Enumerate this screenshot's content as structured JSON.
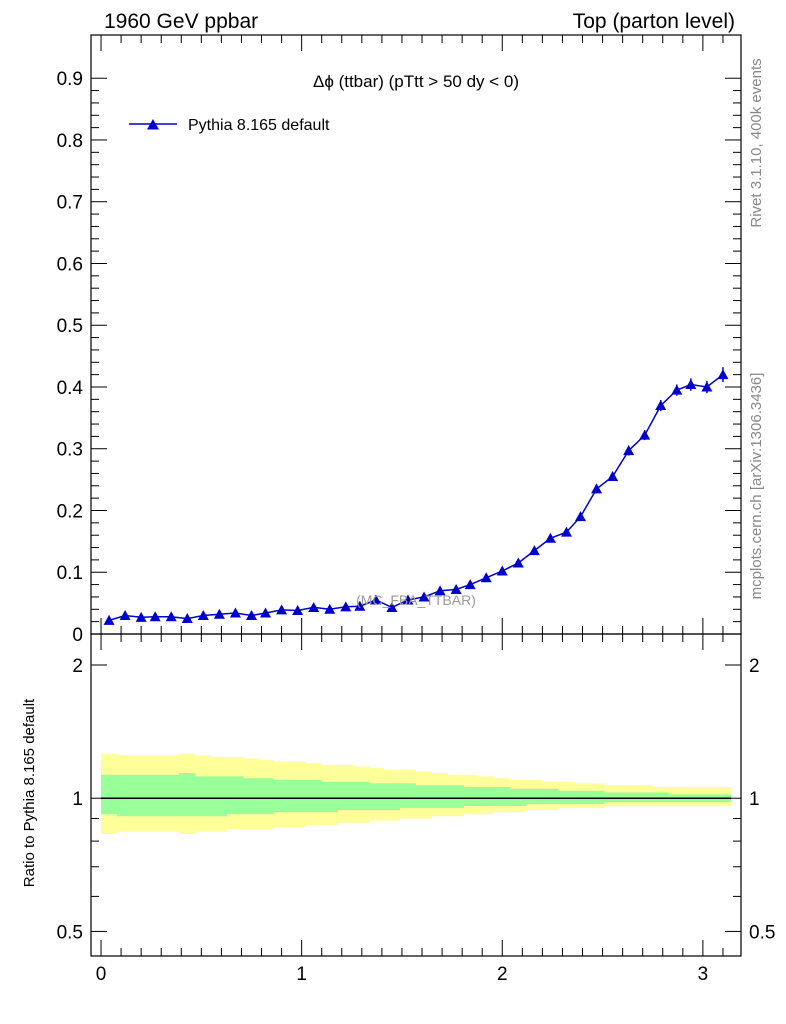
{
  "header": {
    "left": "1960 GeV ppbar",
    "right": "Top (parton level)"
  },
  "side_labels": {
    "rivet": "Rivet 3.1.10,  400k events",
    "mcplots": "mcplots.cern.ch [arXiv:1306.3436]"
  },
  "watermark": "(MC_FBA_TTBAR)",
  "chart_data": [
    {
      "type": "line",
      "title": "Δϕ (ttbar) (pTtt > 50 dy < 0)",
      "xlabel": "",
      "ylabel": "",
      "xlim": [
        -0.05,
        3.19
      ],
      "ylim": [
        0,
        0.97
      ],
      "legend": {
        "placement": "top-left"
      },
      "series": [
        {
          "name": "Pythia 8.165 default",
          "color": "#0000cc",
          "marker": "triangle-up",
          "x": [
            0.04,
            0.12,
            0.2,
            0.27,
            0.35,
            0.43,
            0.51,
            0.59,
            0.67,
            0.75,
            0.82,
            0.9,
            0.98,
            1.06,
            1.14,
            1.22,
            1.29,
            1.37,
            1.45,
            1.53,
            1.61,
            1.69,
            1.77,
            1.84,
            1.92,
            2.0,
            2.08,
            2.16,
            2.24,
            2.32,
            2.39,
            2.47,
            2.55,
            2.63,
            2.71,
            2.79,
            2.87,
            2.94,
            3.02,
            3.1
          ],
          "y": [
            0.022,
            0.03,
            0.027,
            0.028,
            0.028,
            0.025,
            0.03,
            0.032,
            0.034,
            0.03,
            0.034,
            0.039,
            0.038,
            0.043,
            0.04,
            0.044,
            0.045,
            0.055,
            0.043,
            0.055,
            0.06,
            0.07,
            0.072,
            0.08,
            0.091,
            0.102,
            0.115,
            0.135,
            0.155,
            0.165,
            0.19,
            0.235,
            0.255,
            0.297,
            0.322,
            0.37,
            0.395,
            0.404,
            0.4,
            0.42
          ],
          "yerr": [
            0.003,
            0.003,
            0.003,
            0.003,
            0.003,
            0.003,
            0.003,
            0.003,
            0.003,
            0.003,
            0.003,
            0.003,
            0.003,
            0.003,
            0.003,
            0.003,
            0.003,
            0.004,
            0.003,
            0.004,
            0.004,
            0.004,
            0.004,
            0.004,
            0.004,
            0.005,
            0.005,
            0.005,
            0.005,
            0.006,
            0.006,
            0.007,
            0.007,
            0.008,
            0.008,
            0.009,
            0.009,
            0.01,
            0.01,
            0.012
          ]
        }
      ]
    },
    {
      "type": "area",
      "xlabel": "",
      "ylabel": "Ratio to Pythia 8.165 default",
      "xlim": [
        -0.05,
        3.19
      ],
      "ylim": [
        0.44,
        2.35
      ],
      "yscale": "log",
      "xticks": [
        "0",
        "1",
        "2",
        "3"
      ],
      "yticks": [
        "0.5",
        "1",
        "2"
      ],
      "reference_line": 1,
      "x_edges": [
        0.0,
        0.08,
        0.16,
        0.24,
        0.31,
        0.39,
        0.47,
        0.55,
        0.63,
        0.71,
        0.79,
        0.86,
        0.94,
        1.02,
        1.1,
        1.18,
        1.26,
        1.34,
        1.41,
        1.49,
        1.57,
        1.65,
        1.73,
        1.81,
        1.88,
        1.96,
        2.04,
        2.12,
        2.2,
        2.28,
        2.36,
        2.43,
        2.51,
        2.59,
        2.67,
        2.75,
        2.83,
        2.91,
        2.98,
        3.06,
        3.14
      ],
      "series": [
        {
          "name": "",
          "color": "#ffff99",
          "lower": [
            0.83,
            0.84,
            0.84,
            0.84,
            0.84,
            0.83,
            0.84,
            0.84,
            0.85,
            0.85,
            0.85,
            0.86,
            0.86,
            0.87,
            0.87,
            0.88,
            0.88,
            0.89,
            0.89,
            0.9,
            0.9,
            0.91,
            0.91,
            0.92,
            0.92,
            0.93,
            0.93,
            0.94,
            0.94,
            0.95,
            0.95,
            0.95,
            0.96,
            0.96,
            0.96,
            0.96,
            0.96,
            0.96,
            0.96,
            0.96
          ],
          "upper": [
            1.26,
            1.25,
            1.25,
            1.25,
            1.25,
            1.26,
            1.25,
            1.24,
            1.24,
            1.23,
            1.22,
            1.21,
            1.21,
            1.2,
            1.19,
            1.19,
            1.18,
            1.17,
            1.16,
            1.16,
            1.15,
            1.14,
            1.13,
            1.13,
            1.12,
            1.11,
            1.1,
            1.1,
            1.09,
            1.09,
            1.08,
            1.08,
            1.07,
            1.07,
            1.07,
            1.06,
            1.06,
            1.06,
            1.06,
            1.06
          ]
        },
        {
          "name": "",
          "color": "#99ff99",
          "lower": [
            0.92,
            0.91,
            0.91,
            0.91,
            0.91,
            0.91,
            0.91,
            0.91,
            0.92,
            0.92,
            0.92,
            0.93,
            0.93,
            0.93,
            0.93,
            0.94,
            0.94,
            0.94,
            0.94,
            0.95,
            0.95,
            0.95,
            0.95,
            0.96,
            0.96,
            0.96,
            0.96,
            0.97,
            0.97,
            0.97,
            0.97,
            0.97,
            0.98,
            0.98,
            0.98,
            0.98,
            0.98,
            0.98,
            0.98,
            0.98
          ],
          "upper": [
            1.13,
            1.13,
            1.13,
            1.13,
            1.13,
            1.14,
            1.12,
            1.12,
            1.12,
            1.11,
            1.11,
            1.1,
            1.1,
            1.1,
            1.09,
            1.09,
            1.09,
            1.08,
            1.08,
            1.08,
            1.07,
            1.07,
            1.07,
            1.06,
            1.06,
            1.06,
            1.05,
            1.05,
            1.05,
            1.04,
            1.04,
            1.04,
            1.03,
            1.03,
            1.03,
            1.03,
            1.02,
            1.02,
            1.02,
            1.02
          ]
        }
      ]
    }
  ]
}
